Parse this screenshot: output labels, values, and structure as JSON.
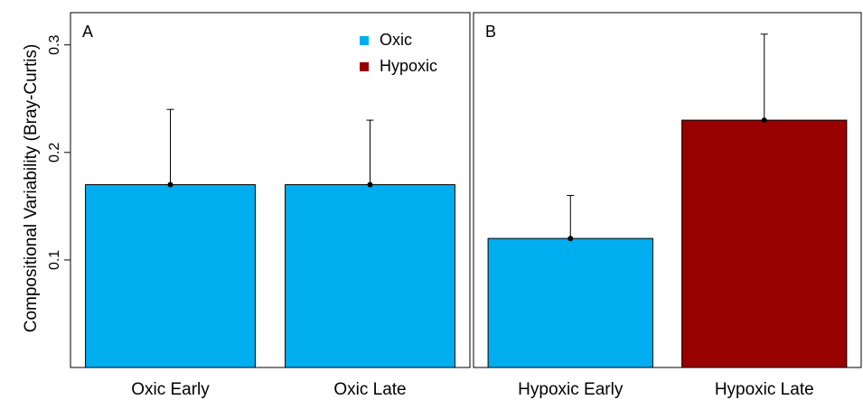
{
  "chart_data": [
    {
      "type": "bar",
      "panel_label": "A",
      "y_label": "Compositional Variability (Bray-Curtis)",
      "categories": [
        "Oxic Early",
        "Oxic Late"
      ],
      "values": [
        0.17,
        0.17
      ],
      "errors": [
        0.07,
        0.06
      ],
      "colors": [
        "#00aeef",
        "#00aeef"
      ],
      "legend": [
        {
          "name": "Oxic",
          "color": "#00aeef"
        },
        {
          "name": "Hypoxic",
          "color": "#990000"
        }
      ],
      "ylim": [
        0,
        0.33
      ],
      "yticks": [
        0.1,
        0.2,
        0.3
      ]
    },
    {
      "type": "bar",
      "panel_label": "B",
      "categories": [
        "Hypoxic Early",
        "Hypoxic Late"
      ],
      "values": [
        0.12,
        0.23
      ],
      "errors": [
        0.04,
        0.08
      ],
      "colors": [
        "#00aeef",
        "#990000"
      ],
      "ylim": [
        0,
        0.33
      ]
    }
  ]
}
